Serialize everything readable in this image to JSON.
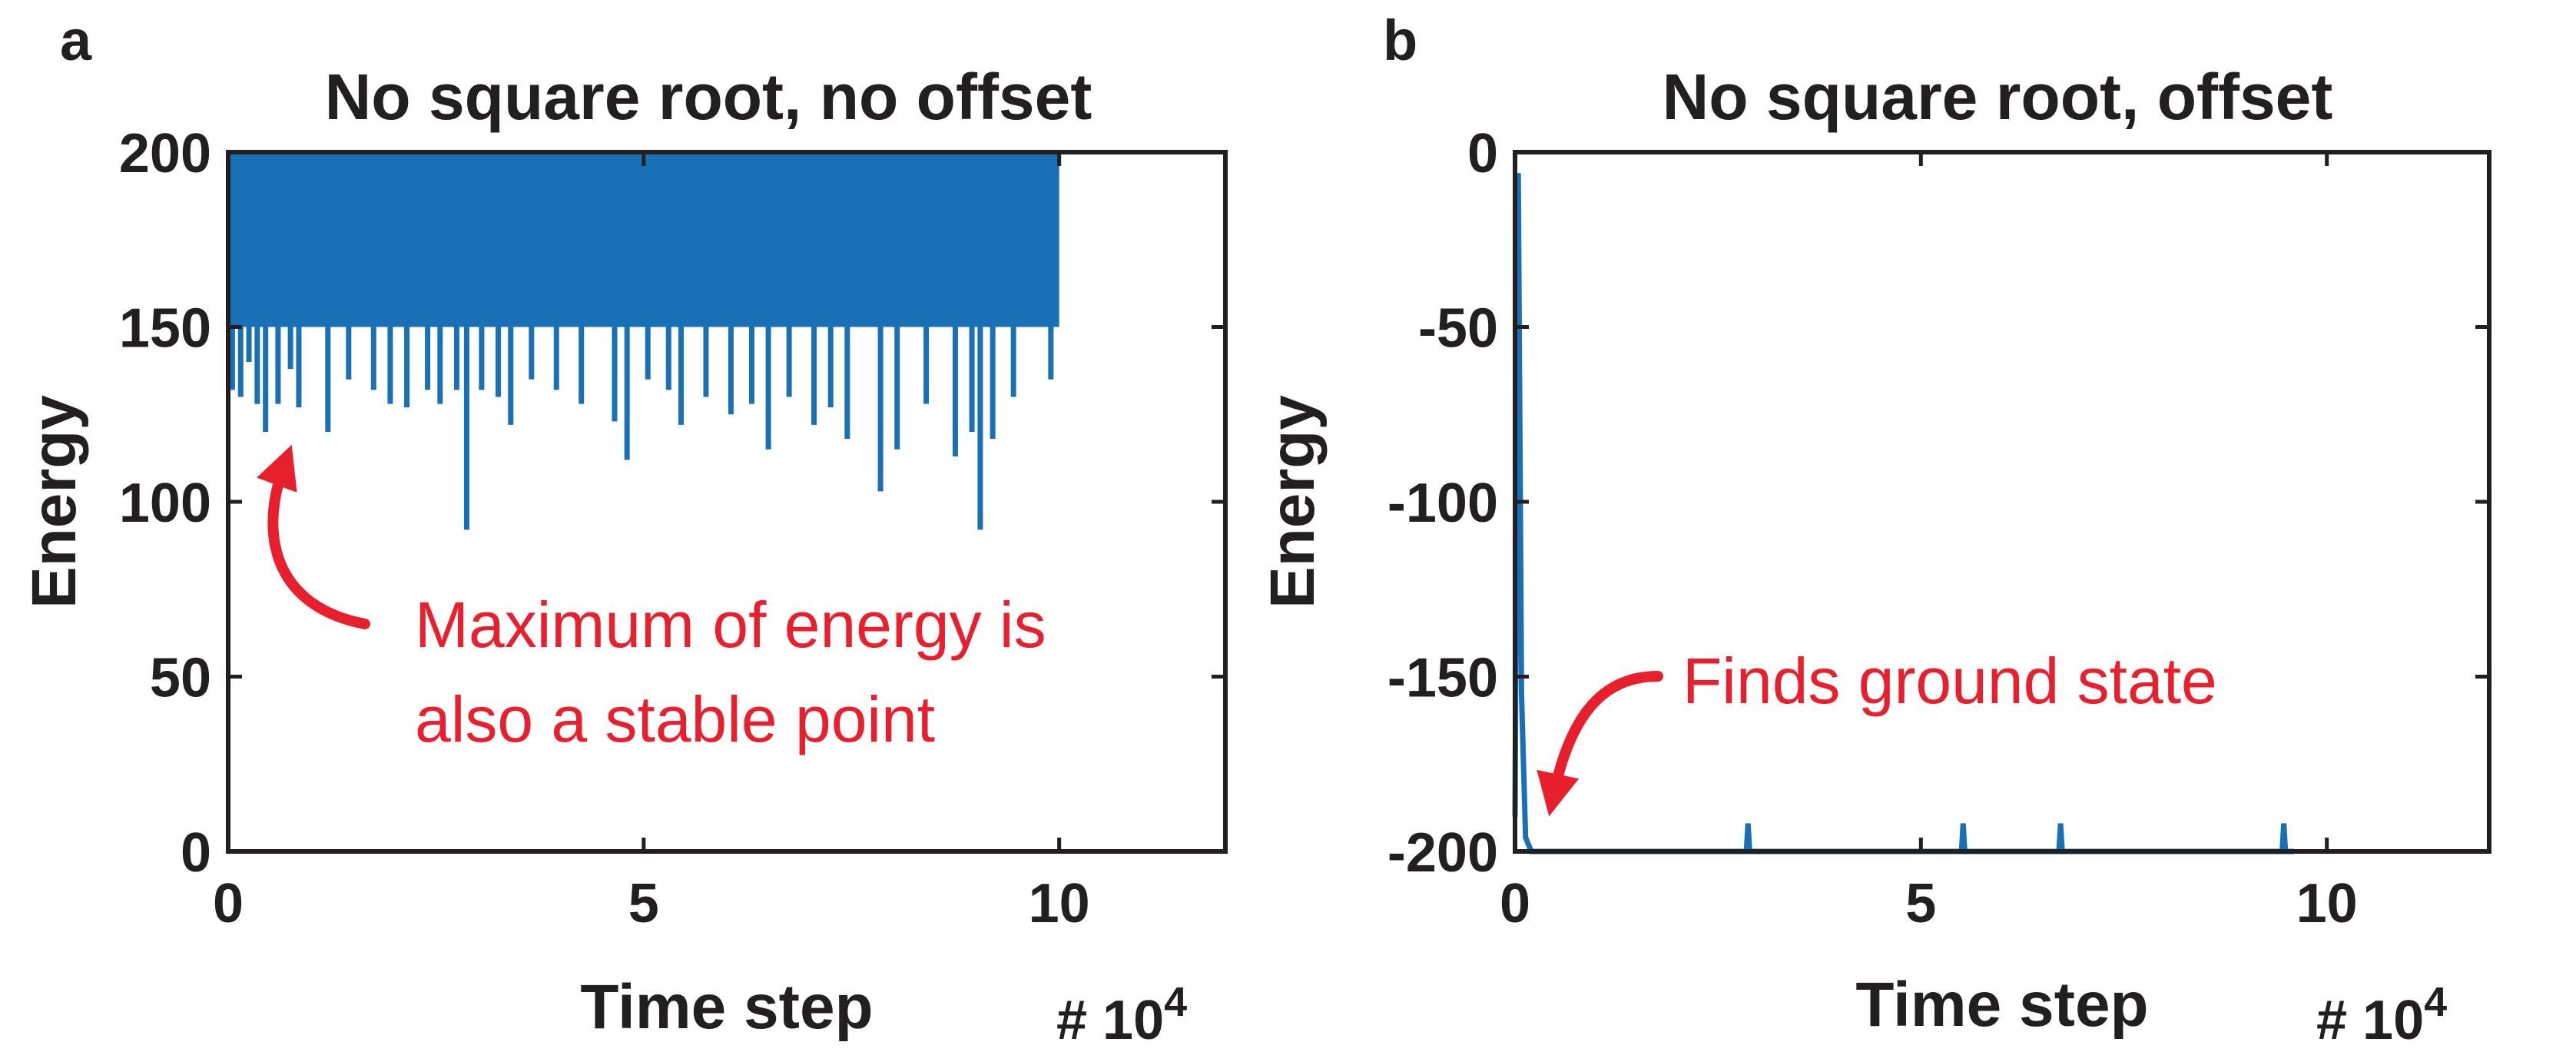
{
  "chart_data": [
    {
      "panel": "a",
      "type": "line",
      "title": "No square root, no offset",
      "xlabel": "Time step",
      "ylabel": "Energy",
      "x_multiplier": "# 10",
      "x_multiplier_exp": "4",
      "xlim": [
        0,
        12
      ],
      "ylim": [
        0,
        200
      ],
      "xticks": [
        0,
        5,
        10
      ],
      "yticks": [
        0,
        50,
        100,
        150,
        200
      ],
      "series_color": "#1a70b5",
      "series": {
        "x_range": [
          0,
          10
        ],
        "upper": 200,
        "band_lower": 150,
        "dips": [
          [
            0.05,
            132
          ],
          [
            0.15,
            130
          ],
          [
            0.25,
            140
          ],
          [
            0.35,
            128
          ],
          [
            0.45,
            120
          ],
          [
            0.6,
            128
          ],
          [
            0.75,
            138
          ],
          [
            0.85,
            127
          ],
          [
            1.2,
            120
          ],
          [
            1.45,
            135
          ],
          [
            1.75,
            132
          ],
          [
            1.95,
            128
          ],
          [
            2.15,
            127
          ],
          [
            2.4,
            132
          ],
          [
            2.55,
            128
          ],
          [
            2.75,
            132
          ],
          [
            2.87,
            92
          ],
          [
            3.05,
            132
          ],
          [
            3.25,
            130
          ],
          [
            3.4,
            122
          ],
          [
            3.65,
            135
          ],
          [
            3.95,
            132
          ],
          [
            4.25,
            128
          ],
          [
            4.65,
            123
          ],
          [
            4.8,
            112
          ],
          [
            5.05,
            135
          ],
          [
            5.3,
            132
          ],
          [
            5.45,
            122
          ],
          [
            5.75,
            130
          ],
          [
            6.05,
            125
          ],
          [
            6.3,
            128
          ],
          [
            6.5,
            115
          ],
          [
            6.75,
            130
          ],
          [
            7.05,
            122
          ],
          [
            7.25,
            127
          ],
          [
            7.45,
            118
          ],
          [
            7.85,
            103
          ],
          [
            8.05,
            115
          ],
          [
            8.4,
            128
          ],
          [
            8.75,
            113
          ],
          [
            8.95,
            120
          ],
          [
            9.05,
            92
          ],
          [
            9.2,
            118
          ],
          [
            9.45,
            130
          ],
          [
            9.9,
            135
          ]
        ]
      },
      "annotation": [
        "Maximum of energy is",
        "also a stable point"
      ]
    },
    {
      "panel": "b",
      "type": "line",
      "title": "No square root, offset",
      "xlabel": "Time step",
      "ylabel": "Energy",
      "x_multiplier": "# 10",
      "x_multiplier_exp": "4",
      "xlim": [
        0,
        12
      ],
      "ylim": [
        -200,
        0
      ],
      "xticks": [
        0,
        5,
        10
      ],
      "yticks": [
        0,
        -50,
        -100,
        -150,
        -200
      ],
      "series_color": "#1a70b5",
      "series": {
        "x": [
          0,
          0.04,
          0.08,
          0.13,
          0.2,
          2.85,
          2.87,
          2.89,
          5.5,
          5.52,
          5.54,
          6.7,
          6.72,
          6.74,
          9.45,
          9.47,
          9.49,
          9.6
        ],
        "y": [
          -190,
          -6,
          -155,
          -196,
          -200,
          -200,
          -192,
          -200,
          -200,
          -192,
          -200,
          -200,
          -192,
          -200,
          -200,
          -192,
          -200,
          -200
        ]
      },
      "annotation": [
        "Finds ground state"
      ]
    }
  ]
}
